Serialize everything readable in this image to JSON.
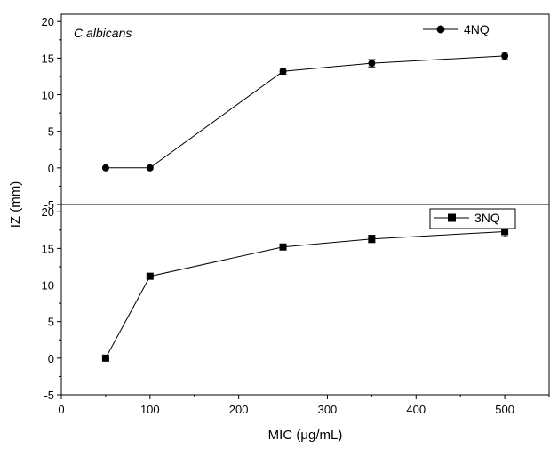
{
  "chart_data": {
    "type": "line",
    "ylabel": "IZ (mm)",
    "xlabel": "MIC (μg/mL)",
    "xlim": [
      0,
      550
    ],
    "x_ticks": [
      0,
      100,
      200,
      300,
      400,
      500
    ],
    "grid": false,
    "panels": [
      {
        "name": "top",
        "annotation": "C.albicans",
        "ylim": [
          -5,
          21
        ],
        "y_ticks": [
          -5,
          0,
          5,
          10,
          15,
          20
        ],
        "legend_position": "top-right",
        "series": [
          {
            "name": "4NQ",
            "marker": "circle",
            "x": [
              50,
              100,
              250,
              350,
              500
            ],
            "y": [
              0,
              0,
              13.2,
              14.3,
              15.3
            ],
            "error": [
              0,
              0,
              0.4,
              0.5,
              0.5
            ]
          }
        ]
      },
      {
        "name": "bottom",
        "annotation": "",
        "ylim": [
          -5,
          21
        ],
        "y_ticks": [
          -5,
          0,
          5,
          10,
          15,
          20
        ],
        "legend_position": "top-right",
        "series": [
          {
            "name": "3NQ",
            "marker": "square",
            "x": [
              50,
              100,
              250,
              350,
              500
            ],
            "y": [
              0,
              11.2,
              15.2,
              16.3,
              17.3
            ],
            "error": [
              0,
              0,
              0.3,
              0.5,
              0.7
            ]
          }
        ]
      }
    ]
  }
}
